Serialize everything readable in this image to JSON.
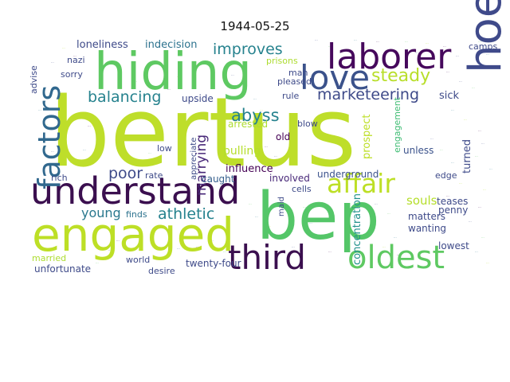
{
  "title": "1944-05-25",
  "chart_data": {
    "type": "wordcloud",
    "title": "1944-05-25",
    "colormap": "viridis",
    "background": "#ffffff",
    "words": [
      {
        "text": "bertus",
        "weight": 1.0,
        "color": "#bede2a",
        "vertical": false
      },
      {
        "text": "bep",
        "weight": 0.62,
        "color": "#54c668",
        "vertical": false
      },
      {
        "text": "hiding",
        "weight": 0.52,
        "color": "#5ec962",
        "vertical": false
      },
      {
        "text": "engaged",
        "weight": 0.5,
        "color": "#bddf26",
        "vertical": false
      },
      {
        "text": "hoever",
        "weight": 0.47,
        "color": "#3f4a8a",
        "vertical": true
      },
      {
        "text": "understand",
        "weight": 0.42,
        "color": "#3b0f4f",
        "vertical": false
      },
      {
        "text": "laborer",
        "weight": 0.36,
        "color": "#46085c",
        "vertical": false
      },
      {
        "text": "love",
        "weight": 0.34,
        "color": "#3b528b",
        "vertical": false
      },
      {
        "text": "third",
        "weight": 0.33,
        "color": "#3b0f4f",
        "vertical": false
      },
      {
        "text": "oldest",
        "weight": 0.33,
        "color": "#5ec962",
        "vertical": false
      },
      {
        "text": "factors",
        "weight": 0.3,
        "color": "#31688e",
        "vertical": true
      },
      {
        "text": "affair",
        "weight": 0.27,
        "color": "#bddf26",
        "vertical": false
      },
      {
        "text": "steady",
        "weight": 0.2,
        "color": "#b8de29",
        "vertical": false
      },
      {
        "text": "improves",
        "weight": 0.17,
        "color": "#26828e",
        "vertical": false
      },
      {
        "text": "balancing",
        "weight": 0.17,
        "color": "#26828e",
        "vertical": false
      },
      {
        "text": "marketeering",
        "weight": 0.16,
        "color": "#3e4a89",
        "vertical": false
      },
      {
        "text": "abyss",
        "weight": 0.17,
        "color": "#26828e",
        "vertical": false
      },
      {
        "text": "athletic",
        "weight": 0.16,
        "color": "#26828e",
        "vertical": false
      },
      {
        "text": "marrying",
        "weight": 0.15,
        "color": "#482878",
        "vertical": true
      },
      {
        "text": "young",
        "weight": 0.14,
        "color": "#2a788e",
        "vertical": false
      },
      {
        "text": "poor",
        "weight": 0.16,
        "color": "#3e4a89",
        "vertical": false
      },
      {
        "text": "concentration",
        "weight": 0.12,
        "color": "#21918c",
        "vertical": true
      },
      {
        "text": "indecision",
        "weight": 0.11,
        "color": "#2c728e",
        "vertical": false
      },
      {
        "text": "loneliness",
        "weight": 0.11,
        "color": "#3e4a89",
        "vertical": false
      },
      {
        "text": "upside",
        "weight": 0.1,
        "color": "#3e4a89",
        "vertical": false
      },
      {
        "text": "sick",
        "weight": 0.1,
        "color": "#3e4a89",
        "vertical": false
      },
      {
        "text": "arrested",
        "weight": 0.1,
        "color": "#addc30",
        "vertical": false
      },
      {
        "text": "pulling",
        "weight": 0.1,
        "color": "#b5de2b",
        "vertical": false
      },
      {
        "text": "prospect",
        "weight": 0.1,
        "color": "#bddf26",
        "vertical": true
      },
      {
        "text": "engagement",
        "weight": 0.09,
        "color": "#3fbc73",
        "vertical": true
      },
      {
        "text": "underground",
        "weight": 0.09,
        "color": "#3b528b",
        "vertical": false
      },
      {
        "text": "influence",
        "weight": 0.1,
        "color": "#440154",
        "vertical": false
      },
      {
        "text": "caught",
        "weight": 0.09,
        "color": "#355f8d",
        "vertical": false
      },
      {
        "text": "involved",
        "weight": 0.09,
        "color": "#482878",
        "vertical": false
      },
      {
        "text": "unless",
        "weight": 0.09,
        "color": "#3b528b",
        "vertical": false
      },
      {
        "text": "turned",
        "weight": 0.09,
        "color": "#3e4a89",
        "vertical": true
      },
      {
        "text": "souls",
        "weight": 0.1,
        "color": "#b5de2b",
        "vertical": false
      },
      {
        "text": "penny",
        "weight": 0.09,
        "color": "#3e4a89",
        "vertical": false
      },
      {
        "text": "teases",
        "weight": 0.09,
        "color": "#3e4a89",
        "vertical": false
      },
      {
        "text": "wanting",
        "weight": 0.09,
        "color": "#3e4a89",
        "vertical": false
      },
      {
        "text": "matters",
        "weight": 0.09,
        "color": "#3e4a89",
        "vertical": false
      },
      {
        "text": "lowest",
        "weight": 0.09,
        "color": "#3e4a89",
        "vertical": false
      },
      {
        "text": "twenty-four",
        "weight": 0.09,
        "color": "#3e4a89",
        "vertical": false
      },
      {
        "text": "unfortunate",
        "weight": 0.09,
        "color": "#3e4a89",
        "vertical": false
      },
      {
        "text": "married",
        "weight": 0.08,
        "color": "#addc30",
        "vertical": false
      },
      {
        "text": "world",
        "weight": 0.08,
        "color": "#3e4a89",
        "vertical": false
      },
      {
        "text": "desire",
        "weight": 0.08,
        "color": "#3e4a89",
        "vertical": false
      },
      {
        "text": "finds",
        "weight": 0.08,
        "color": "#2c728e",
        "vertical": false
      },
      {
        "text": "rich",
        "weight": 0.08,
        "color": "#3e4a89",
        "vertical": false
      },
      {
        "text": "rate",
        "weight": 0.08,
        "color": "#3e4a89",
        "vertical": false
      },
      {
        "text": "low",
        "weight": 0.08,
        "color": "#3e4a89",
        "vertical": false
      },
      {
        "text": "cells",
        "weight": 0.08,
        "color": "#3e4a89",
        "vertical": false
      },
      {
        "text": "edge",
        "weight": 0.08,
        "color": "#3e4a89",
        "vertical": false
      },
      {
        "text": "maid",
        "weight": 0.07,
        "color": "#3e4a89",
        "vertical": true
      },
      {
        "text": "old",
        "weight": 0.08,
        "color": "#440154",
        "vertical": false
      },
      {
        "text": "blow",
        "weight": 0.08,
        "color": "#3e4a89",
        "vertical": false
      },
      {
        "text": "man",
        "weight": 0.08,
        "color": "#3e4a89",
        "vertical": false
      },
      {
        "text": "pleased",
        "weight": 0.08,
        "color": "#3e4a89",
        "vertical": false
      },
      {
        "text": "rule",
        "weight": 0.08,
        "color": "#3e4a89",
        "vertical": false
      },
      {
        "text": "prisons",
        "weight": 0.08,
        "color": "#addc30",
        "vertical": false
      },
      {
        "text": "camps",
        "weight": 0.08,
        "color": "#3e4a89",
        "vertical": false
      },
      {
        "text": "nazi",
        "weight": 0.08,
        "color": "#3e4a89",
        "vertical": false
      },
      {
        "text": "sorry",
        "weight": 0.08,
        "color": "#3e4a89",
        "vertical": false
      },
      {
        "text": "advise",
        "weight": 0.07,
        "color": "#3e4a89",
        "vertical": true
      },
      {
        "text": "appreciate",
        "weight": 0.07,
        "color": "#3e4a89",
        "vertical": true
      }
    ]
  }
}
